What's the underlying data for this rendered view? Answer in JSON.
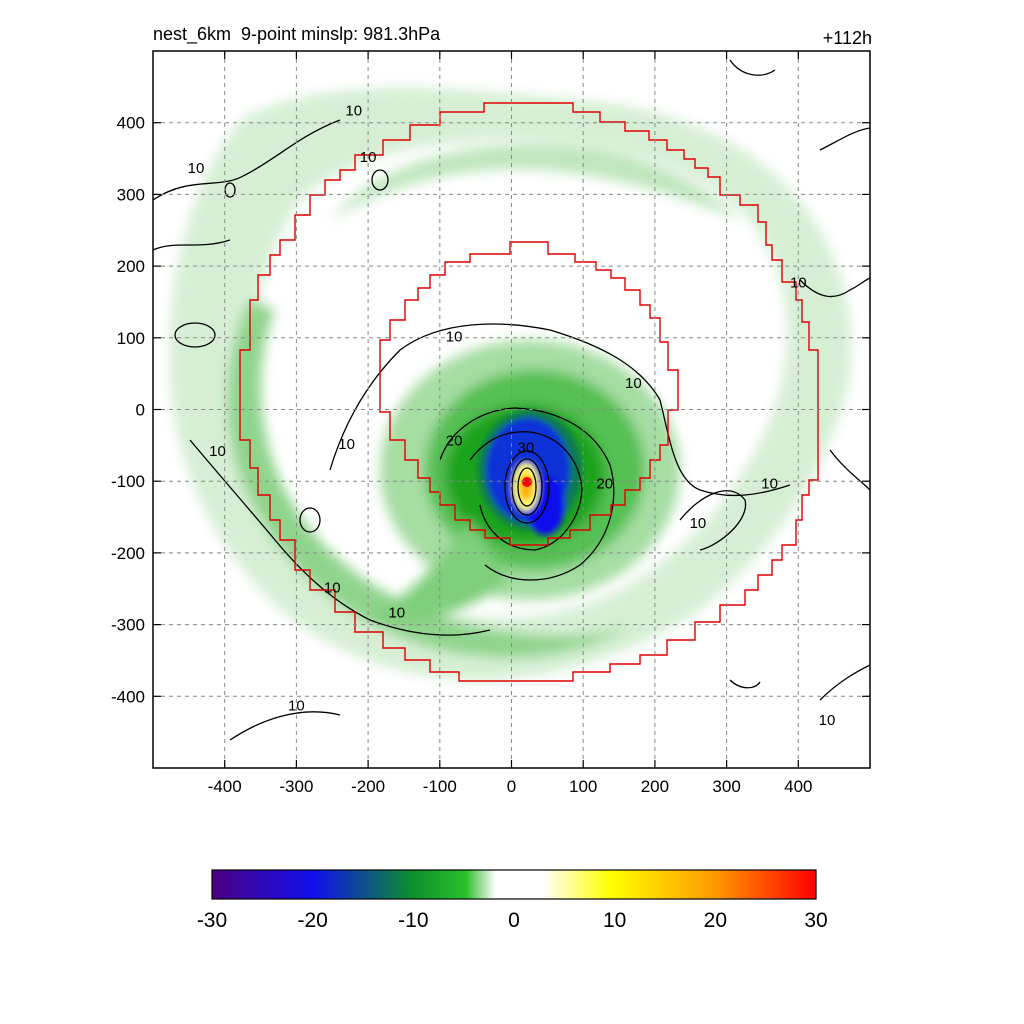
{
  "chart_data": {
    "type": "heatmap",
    "title": "nest_6km  9-point minslp: 981.3hPa",
    "forecast_label": "+112h",
    "xlabel": "",
    "ylabel": "",
    "xlim": [
      -500,
      500
    ],
    "ylim": [
      -500,
      500
    ],
    "xticks": [
      -400,
      -300,
      -200,
      -100,
      0,
      100,
      200,
      300,
      400
    ],
    "yticks": [
      -400,
      -300,
      -200,
      -100,
      0,
      100,
      200,
      300,
      400
    ],
    "grid": true,
    "colorbar": {
      "range": [
        -30,
        30
      ],
      "ticks": [
        -30,
        -20,
        -10,
        0,
        10,
        20,
        30
      ],
      "tick_labels": [
        "-30",
        "-20",
        "-10",
        "0",
        "10",
        "20",
        "30"
      ],
      "colors": [
        "#4b0082",
        "#1010ee",
        "#0c8f2c",
        "#19b319",
        "#ffffff",
        "#ffff00",
        "#ff9b00",
        "#ff0000"
      ]
    },
    "contour_labels": [
      {
        "text": "10",
        "x": -440,
        "y": 330
      },
      {
        "text": "10",
        "x": -220,
        "y": 410
      },
      {
        "text": "10",
        "x": -200,
        "y": 345
      },
      {
        "text": "10",
        "x": -410,
        "y": -65
      },
      {
        "text": "10",
        "x": -230,
        "y": -55
      },
      {
        "text": "10",
        "x": -80,
        "y": 95
      },
      {
        "text": "10",
        "x": 170,
        "y": 30
      },
      {
        "text": "10",
        "x": 400,
        "y": 170
      },
      {
        "text": "10",
        "x": 360,
        "y": -110
      },
      {
        "text": "10",
        "x": 260,
        "y": -165
      },
      {
        "text": "10",
        "x": -250,
        "y": -255
      },
      {
        "text": "10",
        "x": -160,
        "y": -290
      },
      {
        "text": "10",
        "x": -300,
        "y": -420
      },
      {
        "text": "10",
        "x": 440,
        "y": -440
      },
      {
        "text": "20",
        "x": -80,
        "y": -50
      },
      {
        "text": "20",
        "x": 130,
        "y": -110
      },
      {
        "text": "30",
        "x": 20,
        "y": -60
      }
    ],
    "red_boundaries": [
      {
        "name": "outer",
        "radius_km": 425
      },
      {
        "name": "inner",
        "radius_km": 240
      }
    ],
    "storm_center": {
      "x": 20,
      "y": -120
    }
  }
}
